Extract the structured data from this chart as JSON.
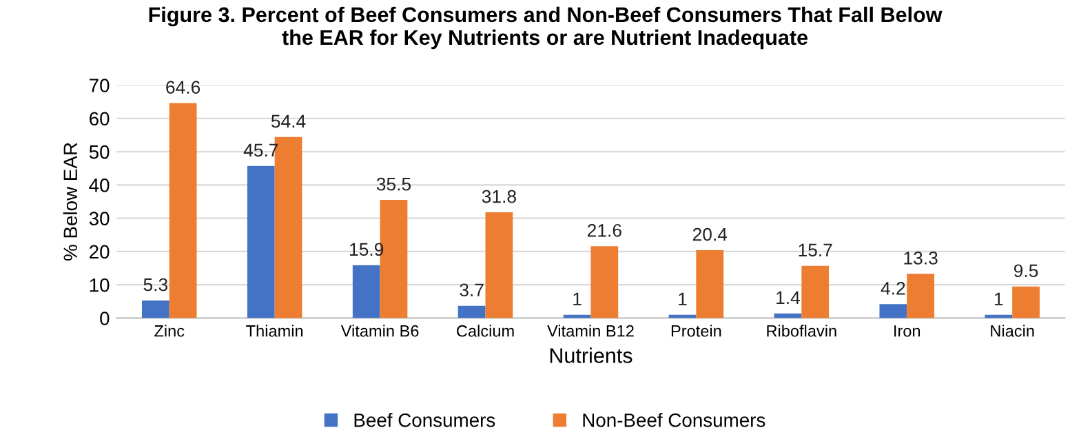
{
  "chart_data": {
    "type": "bar",
    "title": "Figure 3. Percent of Beef Consumers and Non-Beef Consumers That Fall Below\nthe EAR for Key Nutrients or are Nutrient Inadequate",
    "xlabel": "Nutrients",
    "ylabel": "% Below EAR",
    "categories": [
      "Zinc",
      "Thiamin",
      "Vitamin B6",
      "Calcium",
      "Vitamin B12",
      "Protein",
      "Riboflavin",
      "Iron",
      "Niacin"
    ],
    "series": [
      {
        "name": "Beef Consumers",
        "color": "#4472c4",
        "values": [
          5.3,
          45.7,
          15.9,
          3.7,
          1,
          1,
          1.4,
          4.2,
          1
        ]
      },
      {
        "name": "Non-Beef Consumers",
        "color": "#ed7d31",
        "values": [
          64.6,
          54.4,
          35.5,
          31.8,
          21.6,
          20.4,
          15.7,
          13.3,
          9.5
        ]
      }
    ],
    "ylim": [
      0,
      70
    ],
    "yticks": [
      0,
      10,
      20,
      30,
      40,
      50,
      60,
      70
    ],
    "grid": "y",
    "legend": "bottom",
    "data_labels": true
  }
}
